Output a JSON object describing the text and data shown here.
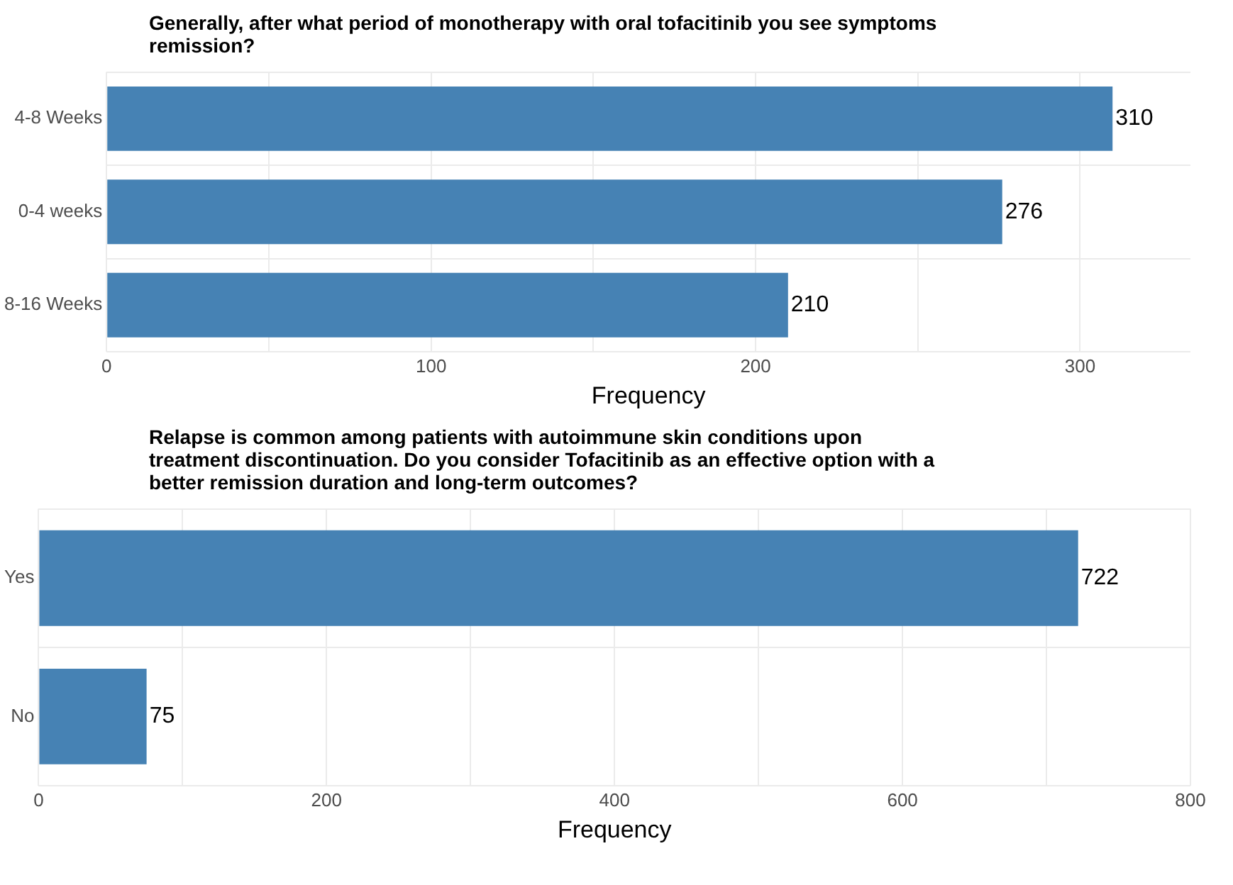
{
  "chart_data": [
    {
      "type": "bar",
      "orientation": "horizontal",
      "title": "Generally, after what period of monotherapy with oral tofacitinib you see symptoms remission?",
      "xlabel": "Frequency",
      "categories": [
        "4-8 Weeks",
        "0-4 weeks",
        "8-16 Weeks"
      ],
      "values": [
        310,
        276,
        210
      ],
      "color": "#4682b4",
      "xlim": [
        0,
        334
      ],
      "xticks": [
        0,
        {
          "value": 50,
          "label": null
        },
        100,
        {
          "value": 150,
          "label": null
        },
        200,
        {
          "value": 250,
          "label": null
        },
        300
      ],
      "grid": true,
      "data_labels": true
    },
    {
      "type": "bar",
      "orientation": "horizontal",
      "title": "Relapse is common among patients with autoimmune skin conditions upon treatment discontinuation. Do you consider Tofacitinib as an effective option with a better remission duration and long-term outcomes?",
      "xlabel": "Frequency",
      "categories": [
        "Yes",
        "No"
      ],
      "values": [
        722,
        75
      ],
      "color": "#4682b4",
      "xlim": [
        0,
        800
      ],
      "xticks": [
        0,
        {
          "value": 100,
          "label": null
        },
        200,
        {
          "value": 300,
          "label": null
        },
        400,
        {
          "value": 500,
          "label": null
        },
        600,
        {
          "value": 700,
          "label": null
        },
        800
      ],
      "grid": true,
      "data_labels": true
    }
  ]
}
